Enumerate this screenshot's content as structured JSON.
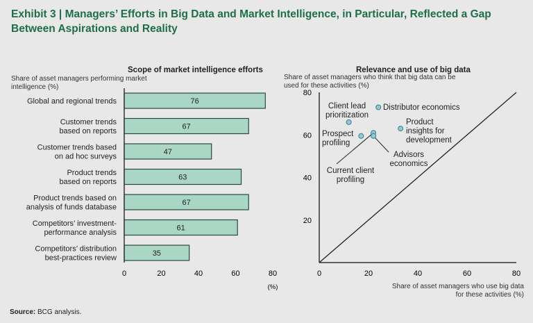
{
  "title": {
    "exhibit": "Exhibit 3",
    "separator": "|",
    "text": "Managers’ Efforts in Big Data and Market Intelligence, in Particular, Reflected a Gap Between Aspirations and Reality"
  },
  "source": {
    "label": "Source:",
    "text": "BCG analysis."
  },
  "chart_data": [
    {
      "type": "bar",
      "orientation": "horizontal",
      "title": "Scope of market intelligence efforts",
      "ylabel": "Share of asset managers performing market intelligence (%)",
      "xlabel": "(%)",
      "categories": [
        "Global and regional trends",
        "Customer trends based on reports",
        "Customer trends based on ad hoc surveys",
        "Product trends based on reports",
        "Product trends based on analysis of funds database",
        "Competitors’ investment-performance analysis",
        "Competitors’ distribution best-practices review"
      ],
      "category_lines": [
        [
          "Global and regional trends"
        ],
        [
          "Customer trends",
          "based on reports"
        ],
        [
          "Customer trends based",
          "on ad hoc surveys"
        ],
        [
          "Product trends",
          "based on reports"
        ],
        [
          "Product trends based on",
          "analysis of funds database"
        ],
        [
          "Competitors’ investment-",
          "performance analysis"
        ],
        [
          "Competitors’ distribution",
          "best-practices review"
        ]
      ],
      "values": [
        76,
        67,
        47,
        63,
        67,
        61,
        35
      ],
      "xlim": [
        0,
        80
      ],
      "xticks": [
        0,
        20,
        40,
        60,
        80
      ],
      "bar_color": "#a9d6c5"
    },
    {
      "type": "scatter",
      "title": "Relevance and use of big data",
      "ylabel": "Share of asset managers who think that big data can be used for these activities (%)",
      "xlabel": "Share of asset managers who use big data for these activities (%)",
      "xlim": [
        0,
        80
      ],
      "ylim": [
        0,
        80
      ],
      "xticks": [
        0,
        20,
        40,
        60,
        80
      ],
      "yticks": [
        20,
        40,
        60,
        80
      ],
      "points": [
        {
          "label": "Distributor economics",
          "x": 24,
          "y": 73
        },
        {
          "label": "Client lead prioritization",
          "x": 12,
          "y": 66
        },
        {
          "label": "Prospect profiling",
          "x": 17,
          "y": 59.5
        },
        {
          "label": "Current client profiling",
          "x": 22,
          "y": 61
        },
        {
          "label": "Advisors economics",
          "x": 22,
          "y": 59.5
        },
        {
          "label": "Product insights for development",
          "x": 33,
          "y": 63
        }
      ],
      "reference_line": "y = x",
      "point_color": "#8fc9d4"
    }
  ]
}
